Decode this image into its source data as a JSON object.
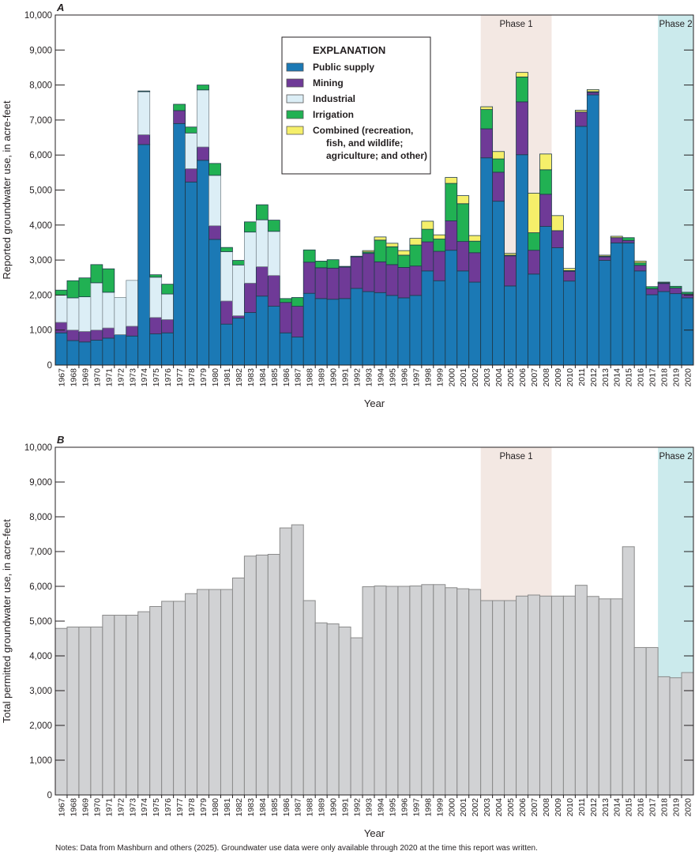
{
  "chart_data": [
    {
      "type": "bar",
      "stacked": true,
      "panel_label": "A",
      "xlabel": "Year",
      "ylabel": "Reported groundwater use, in acre-feet",
      "ylim": [
        0,
        10000
      ],
      "yticks": [
        0,
        1000,
        2000,
        3000,
        4000,
        5000,
        6000,
        7000,
        8000,
        9000,
        10000
      ],
      "categories": [
        "1967",
        "1968",
        "1969",
        "1970",
        "1971",
        "1972",
        "1973",
        "1974",
        "1975",
        "1976",
        "1977",
        "1978",
        "1979",
        "1980",
        "1981",
        "1982",
        "1983",
        "1984",
        "1985",
        "1986",
        "1987",
        "1988",
        "1989",
        "1990",
        "1991",
        "1992",
        "1993",
        "1994",
        "1995",
        "1996",
        "1997",
        "1998",
        "1999",
        "2000",
        "2001",
        "2002",
        "2003",
        "2004",
        "2005",
        "2006",
        "2007",
        "2008",
        "2009",
        "2010",
        "2011",
        "2012",
        "2013",
        "2014",
        "2015",
        "2016",
        "2017",
        "2018",
        "2019",
        "2020"
      ],
      "legend": {
        "title": "EXPLANATION",
        "placement": "top-center"
      },
      "shaded_periods": [
        {
          "label": "Phase 1",
          "from": "2003",
          "to": "2008",
          "color": "#f3e8e3"
        },
        {
          "label": "Phase 2",
          "from": "2018",
          "to": "2020",
          "color": "#cbeaec"
        }
      ],
      "series": [
        {
          "name": "Public supply",
          "color": "#1b79b5",
          "values": [
            920,
            700,
            660,
            710,
            770,
            870,
            830,
            6300,
            890,
            920,
            6900,
            5230,
            5850,
            3590,
            1170,
            1340,
            1500,
            1970,
            1680,
            920,
            800,
            2050,
            1900,
            1880,
            1900,
            2190,
            2100,
            2070,
            1990,
            1920,
            1990,
            2690,
            2410,
            3280,
            2690,
            2370,
            5920,
            4680,
            2260,
            6010,
            2600,
            3960,
            3350,
            2400,
            6820,
            7720,
            2990,
            3490,
            3490,
            2690,
            2010,
            2100,
            2040,
            1920
          ]
        },
        {
          "name": "Mining",
          "color": "#6f3a97",
          "values": [
            300,
            300,
            300,
            290,
            290,
            0,
            280,
            280,
            470,
            380,
            370,
            380,
            380,
            390,
            660,
            70,
            840,
            840,
            880,
            870,
            880,
            890,
            880,
            890,
            900,
            900,
            1090,
            880,
            880,
            870,
            840,
            830,
            840,
            840,
            840,
            840,
            830,
            830,
            860,
            1510,
            680,
            920,
            490,
            280,
            410,
            70,
            100,
            150,
            70,
            160,
            170,
            230,
            160,
            110
          ]
        },
        {
          "name": "Industrial",
          "color": "#dceef6",
          "values": [
            780,
            920,
            990,
            1350,
            1020,
            1060,
            1310,
            1230,
            1150,
            730,
            0,
            1020,
            1630,
            1440,
            1410,
            1450,
            1460,
            1340,
            1260,
            0,
            0,
            0,
            0,
            0,
            0,
            0,
            0,
            0,
            0,
            0,
            0,
            0,
            0,
            0,
            0,
            0,
            0,
            0,
            0,
            0,
            0,
            0,
            0,
            0,
            0,
            0,
            0,
            0,
            0,
            0,
            0,
            0,
            0,
            0
          ]
        },
        {
          "name": "Irrigation",
          "color": "#21b153",
          "values": [
            140,
            490,
            540,
            520,
            670,
            0,
            0,
            20,
            70,
            280,
            180,
            170,
            140,
            340,
            120,
            130,
            290,
            430,
            320,
            110,
            250,
            350,
            190,
            240,
            20,
            20,
            40,
            620,
            510,
            350,
            600,
            360,
            350,
            1070,
            1080,
            330,
            550,
            380,
            20,
            710,
            500,
            700,
            0,
            20,
            0,
            20,
            20,
            0,
            80,
            70,
            60,
            20,
            50,
            50
          ]
        },
        {
          "name": "Combined (recreation, fish, and wildlife; agriculture; and other)",
          "legend_lines": [
            "Combined (recreation,",
            "fish, and wildlife;",
            "agriculture; and other)"
          ],
          "color": "#f5ef6a",
          "values": [
            0,
            0,
            0,
            0,
            0,
            0,
            0,
            0,
            0,
            0,
            0,
            0,
            0,
            0,
            0,
            0,
            0,
            0,
            0,
            0,
            0,
            0,
            0,
            0,
            0,
            0,
            40,
            90,
            100,
            130,
            190,
            230,
            120,
            170,
            230,
            160,
            80,
            210,
            50,
            130,
            1130,
            450,
            430,
            60,
            50,
            60,
            30,
            40,
            0,
            50,
            0,
            20,
            0,
            0
          ]
        }
      ]
    },
    {
      "type": "bar",
      "panel_label": "B",
      "xlabel": "Year",
      "ylabel": "Total permitted groundwater use, in acre-feet",
      "ylim": [
        0,
        10000
      ],
      "yticks": [
        0,
        1000,
        2000,
        3000,
        4000,
        5000,
        6000,
        7000,
        8000,
        9000,
        10000
      ],
      "categories": [
        "1967",
        "1968",
        "1969",
        "1970",
        "1971",
        "1972",
        "1973",
        "1974",
        "1975",
        "1976",
        "1977",
        "1978",
        "1979",
        "1980",
        "1981",
        "1982",
        "1983",
        "1984",
        "1985",
        "1986",
        "1987",
        "1988",
        "1989",
        "1990",
        "1991",
        "1992",
        "1993",
        "1994",
        "1995",
        "1996",
        "1997",
        "1998",
        "1999",
        "2000",
        "2001",
        "2002",
        "2003",
        "2004",
        "2005",
        "2006",
        "2007",
        "2008",
        "2009",
        "2010",
        "2011",
        "2012",
        "2013",
        "2014",
        "2015",
        "2016",
        "2017",
        "2018",
        "2019",
        "2020"
      ],
      "bar_color": "#d1d2d4",
      "shaded_periods": [
        {
          "label": "Phase 1",
          "from": "2003",
          "to": "2008",
          "color": "#f3e8e3"
        },
        {
          "label": "Phase 2",
          "from": "2018",
          "to": "2020",
          "color": "#cbeaec"
        }
      ],
      "values": [
        4790,
        4830,
        4830,
        4830,
        5170,
        5170,
        5170,
        5270,
        5420,
        5570,
        5570,
        5790,
        5910,
        5910,
        5910,
        6240,
        6870,
        6900,
        6920,
        7680,
        7770,
        5590,
        4950,
        4920,
        4830,
        4520,
        5990,
        6010,
        6000,
        6000,
        6010,
        6050,
        6050,
        5960,
        5930,
        5910,
        5590,
        5590,
        5590,
        5720,
        5750,
        5720,
        5720,
        5720,
        6030,
        5710,
        5640,
        5640,
        7140,
        4240,
        4240,
        3400,
        3370,
        3520
      ]
    }
  ],
  "notes": "Notes: Data from Mashburn and others (2025). Groundwater use data were only available through 2020 at the time this report was written."
}
